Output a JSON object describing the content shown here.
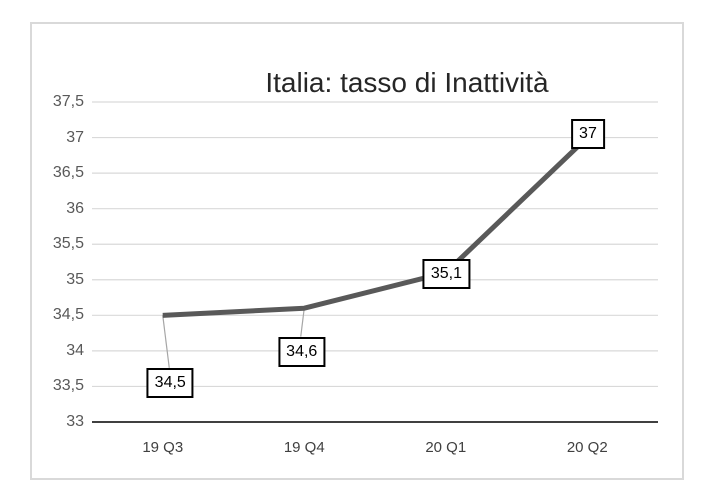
{
  "chart_data": {
    "type": "line",
    "title": "Italia: tasso di Inattività",
    "categories": [
      "19 Q3",
      "19 Q4",
      "20 Q1",
      "20 Q2"
    ],
    "series": [
      {
        "name": "tasso di inattività",
        "values": [
          34.5,
          34.6,
          35.1,
          37
        ]
      }
    ],
    "value_labels": [
      "34,5",
      "34,6",
      "35,1",
      "37"
    ],
    "data_label_placements": [
      "below-with-leader",
      "below-with-leader",
      "on-point",
      "on-point"
    ],
    "xlabel": "",
    "ylabel": "",
    "ylim": [
      33,
      37.5
    ],
    "ytick_step": 0.5,
    "ytick_labels": [
      "33",
      "33,5",
      "34",
      "34,5",
      "35",
      "35,5",
      "36",
      "36,5",
      "37",
      "37,5"
    ],
    "decimal_separator": ",",
    "grid": true,
    "legend": "none",
    "colors": {
      "series": "#595959",
      "gridline": "#d9d9d9",
      "axis_line": "#000000",
      "tick_label": "#595959",
      "category_label": "#404040",
      "title_text": "#262626",
      "data_label_text": "#000000",
      "data_label_border": "#000000",
      "data_label_fill": "#ffffff",
      "leader_line": "#a6a6a6",
      "frame_border": "#d9d9d9",
      "background": "#ffffff"
    }
  }
}
